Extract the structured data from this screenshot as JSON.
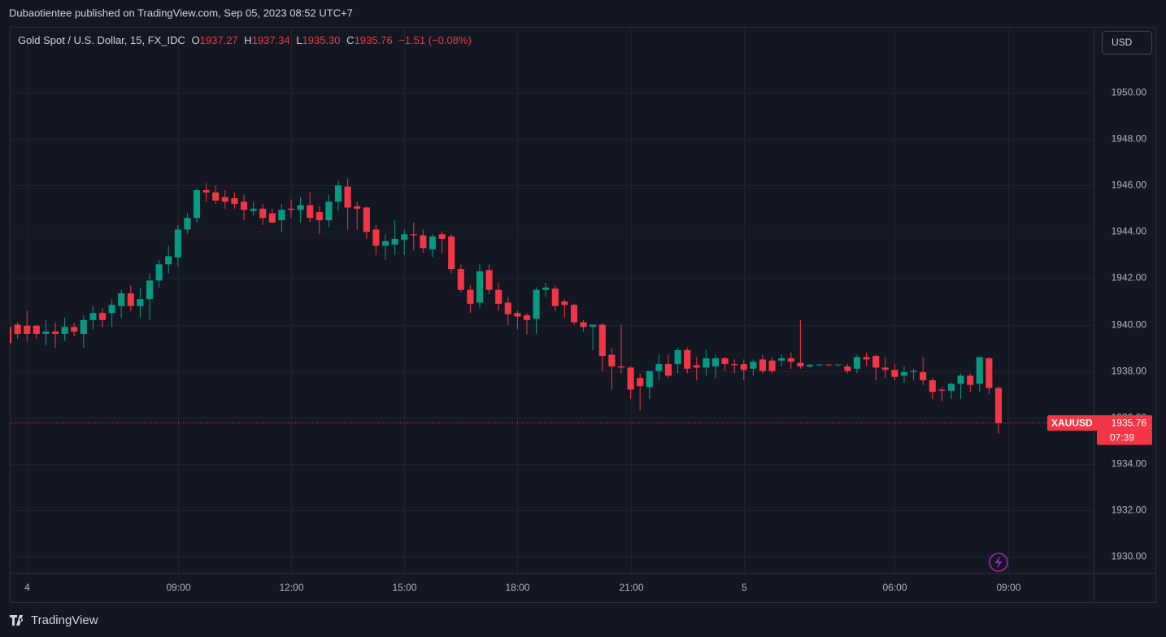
{
  "header": {
    "title": "Dubaotientee published on TradingView.com, Sep 05, 2023 08:52 UTC+7"
  },
  "currency_button": "USD",
  "footer": {
    "brand": "TradingView"
  },
  "chart_data": {
    "type": "candlestick",
    "legend": {
      "symbol": "Gold Spot / U.S. Dollar, 15, FX_IDC",
      "items": [
        {
          "key": "O",
          "value": "1937.27"
        },
        {
          "key": "H",
          "value": "1937.34"
        },
        {
          "key": "L",
          "value": "1935.30"
        },
        {
          "key": "C",
          "value": "1935.76"
        }
      ],
      "change": "−1.51 (−0.08%)"
    },
    "last_price": {
      "symbol": "XAUUSD",
      "price": "1935.76",
      "countdown": "07:39"
    },
    "up_color": "#089981",
    "down_color": "#f23645",
    "grid": true,
    "ylim": [
      1929.3,
      1952.84
    ],
    "yticks": [
      {
        "value": 1930,
        "label": "1930.00"
      },
      {
        "value": 1932,
        "label": "1932.00"
      },
      {
        "value": 1934,
        "label": "1934.00"
      },
      {
        "value": 1936,
        "label": "1936.00"
      },
      {
        "value": 1938,
        "label": "1938.00"
      },
      {
        "value": 1940,
        "label": "1940.00"
      },
      {
        "value": 1942,
        "label": "1942.00"
      },
      {
        "value": 1944,
        "label": "1944.00"
      },
      {
        "value": 1946,
        "label": "1946.00"
      },
      {
        "value": 1948,
        "label": "1948.00"
      },
      {
        "value": 1950,
        "label": "1950.00"
      }
    ],
    "xlim": [
      0.17,
      115.09
    ],
    "xticks": [
      {
        "value": 2,
        "label": "4"
      },
      {
        "value": 18,
        "label": "09:00"
      },
      {
        "value": 30,
        "label": "12:00"
      },
      {
        "value": 42,
        "label": "15:00"
      },
      {
        "value": 54,
        "label": "18:00"
      },
      {
        "value": 66,
        "label": "21:00"
      },
      {
        "value": 78,
        "label": "5"
      },
      {
        "value": 94,
        "label": "06:00"
      },
      {
        "value": 106,
        "label": "09:00"
      }
    ],
    "open": [
      1939.9,
      1940.0,
      1939.95,
      1939.95,
      1939.6,
      1939.7,
      1939.6,
      1939.9,
      1939.6,
      1940.2,
      1940.5,
      1940.5,
      1940.8,
      1941.35,
      1940.8,
      1941.1,
      1941.9,
      1942.6,
      1942.9,
      1944.1,
      1944.6,
      1945.8,
      1945.7,
      1945.5,
      1945.45,
      1945.3,
      1944.9,
      1945.0,
      1944.8,
      1944.5,
      1945.0,
      1944.95,
      1945.15,
      1944.85,
      1944.5,
      1945.3,
      1945.95,
      1945.1,
      1945.05,
      1944.1,
      1943.4,
      1943.45,
      1943.65,
      1943.9,
      1943.85,
      1943.25,
      1943.9,
      1943.8,
      1942.4,
      1941.5,
      1940.95,
      1942.35,
      1941.5,
      1940.95,
      1940.5,
      1940.4,
      1940.25,
      1941.5,
      1941.55,
      1941.0,
      1940.85,
      1940.1,
      1939.9,
      1940.0,
      1938.7,
      1938.2,
      1938.15,
      1937.7,
      1937.3,
      1938.0,
      1938.3,
      1938.3,
      1938.9,
      1938.25,
      1938.15,
      1938.2,
      1938.55,
      1938.3,
      1938.3,
      1938.1,
      1938.5,
      1938.45,
      1938.45,
      1938.55,
      1938.35,
      1938.2,
      1938.27,
      1938.28,
      1938.27,
      1938.2,
      1938.1,
      1938.6,
      1938.65,
      1938.15,
      1938.05,
      1937.8,
      1937.95,
      1937.95,
      1937.6,
      1937.2,
      1937.15,
      1937.45,
      1937.8,
      1937.45,
      1938.55,
      1937.27
    ],
    "high": [
      1940.0,
      1940.1,
      1940.6,
      1940.0,
      1940.2,
      1940.1,
      1940.3,
      1940.1,
      1940.4,
      1940.8,
      1940.7,
      1941.1,
      1941.5,
      1941.7,
      1941.6,
      1942.2,
      1942.8,
      1943.4,
      1944.3,
      1944.8,
      1945.9,
      1946.1,
      1946.0,
      1945.8,
      1945.7,
      1945.6,
      1945.3,
      1945.2,
      1945.0,
      1945.2,
      1945.4,
      1945.5,
      1945.7,
      1945.1,
      1945.6,
      1946.2,
      1946.3,
      1945.3,
      1945.1,
      1944.3,
      1943.9,
      1944.5,
      1944.1,
      1944.4,
      1944.1,
      1943.9,
      1944.0,
      1943.9,
      1942.6,
      1941.7,
      1942.6,
      1942.6,
      1941.8,
      1941.2,
      1940.6,
      1940.5,
      1941.6,
      1941.8,
      1941.7,
      1941.1,
      1940.9,
      1940.2,
      1940.0,
      1940.05,
      1939.0,
      1940.0,
      1938.2,
      1937.9,
      1938.0,
      1938.7,
      1938.7,
      1939.0,
      1939.0,
      1938.6,
      1938.9,
      1938.7,
      1938.6,
      1938.5,
      1938.5,
      1938.5,
      1938.7,
      1938.6,
      1938.7,
      1938.8,
      1940.2,
      1938.3,
      1938.3,
      1938.3,
      1938.3,
      1938.3,
      1938.7,
      1938.8,
      1938.7,
      1938.6,
      1938.3,
      1938.2,
      1938.1,
      1938.6,
      1937.7,
      1937.3,
      1937.5,
      1937.9,
      1937.9,
      1938.6,
      1938.6,
      1937.34
    ],
    "low": [
      1939.2,
      1939.4,
      1939.3,
      1939.4,
      1939.1,
      1939.0,
      1939.3,
      1939.5,
      1939.0,
      1939.8,
      1939.9,
      1939.9,
      1940.3,
      1940.6,
      1940.3,
      1940.2,
      1941.6,
      1942.2,
      1942.5,
      1943.9,
      1944.4,
      1945.3,
      1945.2,
      1945.0,
      1945.0,
      1944.5,
      1944.7,
      1944.3,
      1944.4,
      1944.0,
      1944.6,
      1944.4,
      1944.4,
      1943.9,
      1944.2,
      1944.9,
      1944.1,
      1944.1,
      1943.7,
      1943.0,
      1942.8,
      1943.0,
      1943.0,
      1943.2,
      1943.1,
      1942.9,
      1943.1,
      1942.2,
      1941.4,
      1940.5,
      1940.7,
      1941.3,
      1940.6,
      1940.0,
      1939.8,
      1939.6,
      1939.6,
      1941.2,
      1940.6,
      1940.3,
      1940.0,
      1939.7,
      1938.9,
      1938.0,
      1937.2,
      1937.9,
      1936.8,
      1936.3,
      1936.8,
      1937.6,
      1937.7,
      1937.9,
      1937.9,
      1937.6,
      1937.8,
      1937.7,
      1938.0,
      1937.9,
      1937.6,
      1937.8,
      1937.9,
      1937.9,
      1938.2,
      1938.1,
      1938.1,
      1938.15,
      1938.2,
      1938.2,
      1938.2,
      1937.9,
      1937.9,
      1938.2,
      1937.6,
      1937.7,
      1937.6,
      1937.5,
      1937.6,
      1937.4,
      1936.8,
      1936.7,
      1936.8,
      1936.8,
      1937.1,
      1937.1,
      1937.0,
      1935.3
    ],
    "close": [
      1939.2,
      1939.6,
      1939.6,
      1939.6,
      1939.7,
      1939.6,
      1939.9,
      1939.7,
      1940.2,
      1940.5,
      1940.2,
      1940.85,
      1941.35,
      1940.8,
      1941.1,
      1941.9,
      1942.6,
      1942.95,
      1944.1,
      1944.6,
      1945.8,
      1945.7,
      1945.35,
      1945.3,
      1945.2,
      1944.95,
      1945.0,
      1944.6,
      1944.4,
      1944.95,
      1944.95,
      1945.15,
      1944.6,
      1944.5,
      1945.3,
      1946.0,
      1945.05,
      1945.0,
      1944.0,
      1943.4,
      1943.6,
      1943.7,
      1943.9,
      1943.85,
      1943.3,
      1943.8,
      1943.7,
      1942.4,
      1941.5,
      1940.9,
      1942.3,
      1941.5,
      1940.9,
      1940.45,
      1940.35,
      1940.2,
      1941.5,
      1941.6,
      1940.8,
      1940.85,
      1940.1,
      1939.9,
      1940.0,
      1938.65,
      1938.2,
      1938.15,
      1937.2,
      1937.35,
      1938.0,
      1938.3,
      1937.8,
      1938.9,
      1938.1,
      1938.15,
      1938.55,
      1938.55,
      1938.3,
      1938.25,
      1938.05,
      1938.4,
      1938.0,
      1938.0,
      1938.55,
      1938.4,
      1938.2,
      1938.27,
      1938.28,
      1938.27,
      1938.28,
      1938.0,
      1938.6,
      1938.5,
      1938.15,
      1938.05,
      1937.75,
      1937.95,
      1938.0,
      1937.6,
      1937.1,
      1937.15,
      1937.45,
      1937.8,
      1937.4,
      1938.6,
      1937.27,
      1935.76
    ]
  }
}
